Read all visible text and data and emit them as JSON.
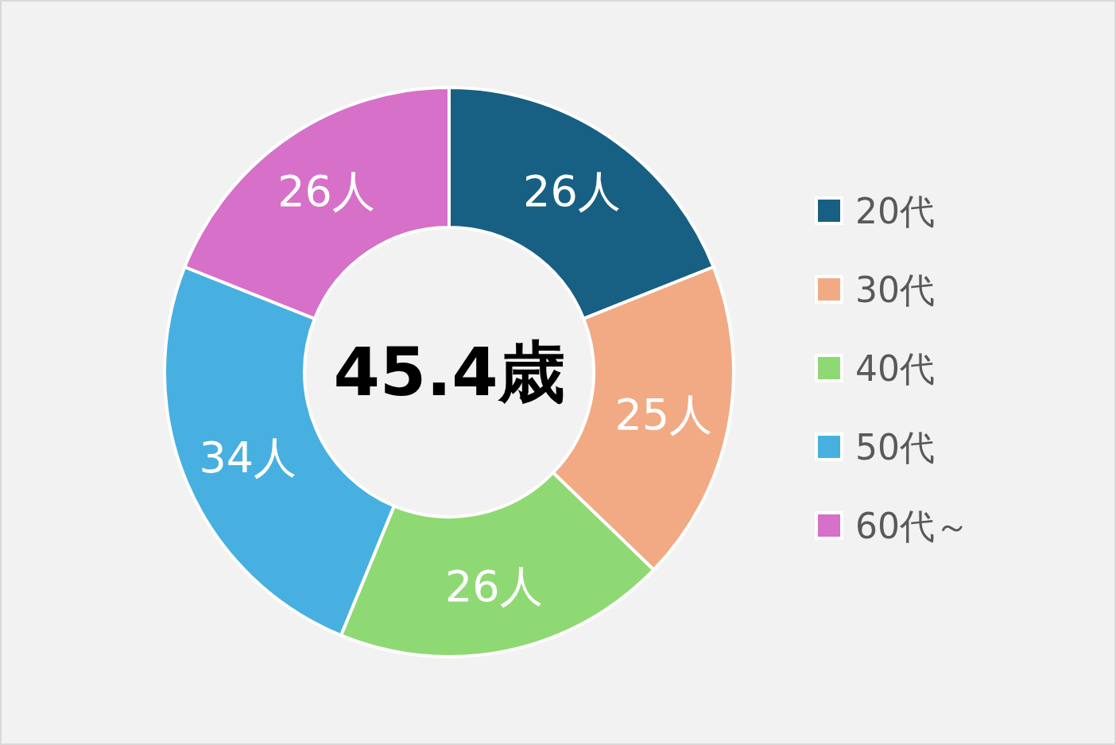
{
  "chart_data": {
    "type": "donut",
    "categories": [
      "20代",
      "30代",
      "40代",
      "50代",
      "60代～"
    ],
    "values": [
      26,
      25,
      26,
      34,
      26
    ],
    "value_labels": [
      "26人",
      "25人",
      "26人",
      "34人",
      "26人"
    ],
    "colors": [
      "#176083",
      "#f2aa84",
      "#8fd974",
      "#47b0e0",
      "#d670c9"
    ],
    "annotations": [
      "45.4歳"
    ],
    "legend": "right"
  }
}
